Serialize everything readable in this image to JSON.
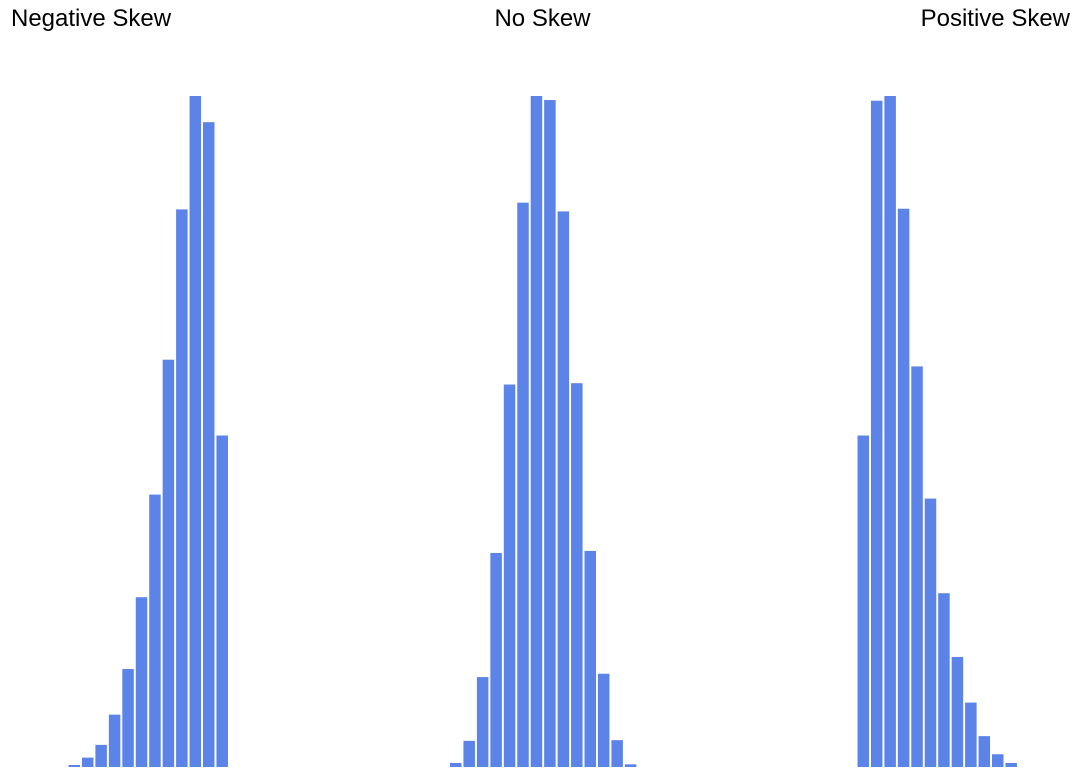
{
  "colors": {
    "bar": "#5b83e8",
    "background": "#ffffff",
    "text": "#000000"
  },
  "chart_data": [
    {
      "type": "bar",
      "title": "Negative Skew",
      "xlabel": "",
      "ylabel": "",
      "grid": false,
      "axes_visible": false,
      "values": [
        0.3,
        1.4,
        3.3,
        7.8,
        14.6,
        25.3,
        40.6,
        60.7,
        83.1,
        100,
        96.1,
        49.4
      ]
    },
    {
      "type": "bar",
      "title": "No Skew",
      "xlabel": "",
      "ylabel": "",
      "grid": false,
      "axes_visible": false,
      "values": [
        0.6,
        3.9,
        13.4,
        31.9,
        57.0,
        84.1,
        100,
        99.4,
        82.8,
        57.2,
        32.2,
        13.9,
        4.0,
        0.4
      ]
    },
    {
      "type": "bar",
      "title": "Positive Skew",
      "xlabel": "",
      "ylabel": "",
      "grid": false,
      "axes_visible": false,
      "values": [
        49.4,
        99.3,
        100,
        83.2,
        59.7,
        40.0,
        25.9,
        16.4,
        9.6,
        4.6,
        1.9,
        0.6
      ]
    }
  ]
}
